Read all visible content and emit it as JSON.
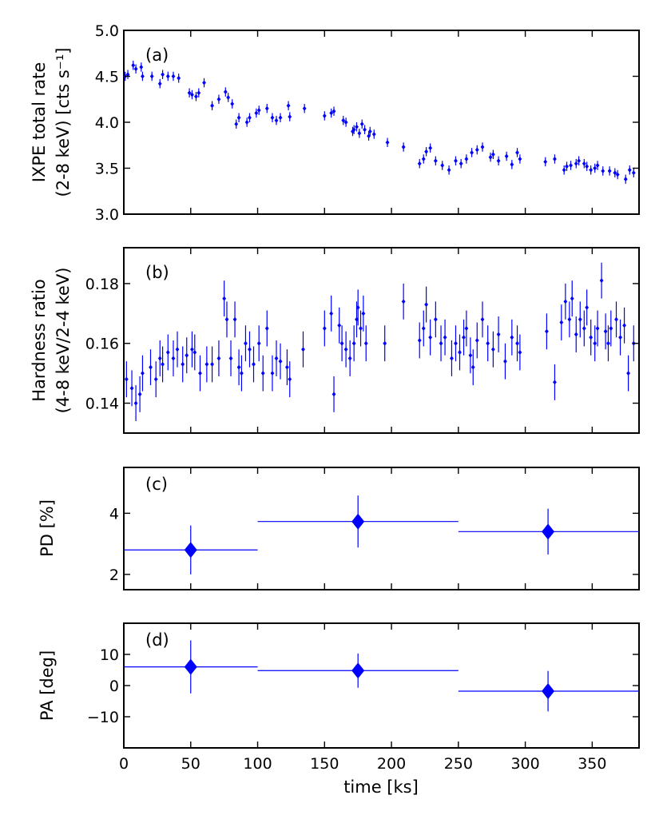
{
  "figure": {
    "xlabel": "time [ks]",
    "x_ticks": [
      0,
      50,
      100,
      150,
      200,
      250,
      300,
      350
    ],
    "xlim": [
      0,
      385
    ],
    "color": "#0000ff"
  },
  "chart_data": [
    {
      "type": "scatter",
      "panel": "(a)",
      "ylabel_line1": "IXPE total rate",
      "ylabel_line2": "(2-8 keV) [cts s⁻¹]",
      "ylim": [
        3.0,
        5.0
      ],
      "y_ticks": [
        3.0,
        3.5,
        4.0,
        4.5,
        5.0
      ],
      "y_tick_labels": [
        "3.0",
        "3.5",
        "4.0",
        "4.5",
        "5.0"
      ],
      "yerr": 0.05,
      "x": [
        1,
        3,
        7,
        9,
        13,
        14,
        21,
        27,
        29,
        33,
        37,
        41,
        49,
        51,
        54,
        56,
        60,
        66,
        71,
        76,
        78,
        81,
        84,
        86,
        92,
        94,
        99,
        101,
        107,
        111,
        114,
        117,
        123,
        124,
        135,
        150,
        155,
        157,
        164,
        166,
        171,
        172,
        174,
        176,
        178,
        180,
        183,
        184,
        187,
        197,
        209,
        221,
        224,
        226,
        229,
        233,
        238,
        243,
        248,
        252,
        256,
        260,
        264,
        268,
        274,
        276,
        280,
        286,
        290,
        294,
        296,
        315,
        322,
        329,
        331,
        334,
        338,
        340,
        344,
        346,
        349,
        352,
        354,
        358,
        363,
        367,
        369,
        375,
        378,
        381
      ],
      "y": [
        4.5,
        4.52,
        4.62,
        4.58,
        4.6,
        4.5,
        4.5,
        4.42,
        4.52,
        4.5,
        4.5,
        4.48,
        4.32,
        4.3,
        4.28,
        4.32,
        4.43,
        4.18,
        4.25,
        4.33,
        4.27,
        4.2,
        3.98,
        4.05,
        4.0,
        4.05,
        4.1,
        4.13,
        4.15,
        4.05,
        4.02,
        4.05,
        4.18,
        4.06,
        4.15,
        4.07,
        4.1,
        4.12,
        4.02,
        4.0,
        3.9,
        3.92,
        3.95,
        3.88,
        3.98,
        3.92,
        3.85,
        3.9,
        3.87,
        3.78,
        3.73,
        3.55,
        3.6,
        3.68,
        3.72,
        3.58,
        3.53,
        3.48,
        3.58,
        3.55,
        3.6,
        3.67,
        3.7,
        3.73,
        3.62,
        3.65,
        3.58,
        3.63,
        3.54,
        3.67,
        3.6,
        3.57,
        3.6,
        3.48,
        3.52,
        3.53,
        3.55,
        3.58,
        3.55,
        3.52,
        3.48,
        3.5,
        3.53,
        3.47,
        3.47,
        3.45,
        3.43,
        3.38,
        3.48,
        3.45
      ]
    },
    {
      "type": "scatter",
      "panel": "(b)",
      "ylabel_line1": "Hardness ratio",
      "ylabel_line2": "(4-8 keV/2-4 keV)",
      "ylim": [
        0.13,
        0.192
      ],
      "y_ticks": [
        0.14,
        0.16,
        0.18
      ],
      "y_tick_labels": [
        "0.14",
        "0.16",
        "0.18"
      ],
      "yerr": 0.006,
      "x": [
        2,
        6,
        9,
        12,
        14,
        20,
        24,
        27,
        29,
        33,
        37,
        40,
        44,
        47,
        51,
        53,
        57,
        62,
        66,
        71,
        75,
        77,
        80,
        83,
        86,
        88,
        91,
        94,
        97,
        101,
        104,
        107,
        111,
        114,
        117,
        122,
        124,
        134,
        150,
        155,
        157,
        161,
        163,
        166,
        169,
        172,
        174,
        175,
        177,
        179,
        181,
        195,
        209,
        221,
        224,
        226,
        229,
        233,
        237,
        240,
        245,
        248,
        251,
        254,
        256,
        259,
        261,
        264,
        268,
        272,
        276,
        280,
        285,
        290,
        294,
        296,
        316,
        322,
        327,
        330,
        333,
        335,
        338,
        341,
        344,
        346,
        349,
        352,
        354,
        357,
        360,
        362,
        364,
        368,
        371,
        374,
        377,
        381
      ],
      "y": [
        0.148,
        0.145,
        0.14,
        0.143,
        0.15,
        0.152,
        0.148,
        0.155,
        0.153,
        0.157,
        0.155,
        0.158,
        0.153,
        0.156,
        0.158,
        0.157,
        0.15,
        0.153,
        0.153,
        0.155,
        0.175,
        0.168,
        0.155,
        0.168,
        0.152,
        0.15,
        0.16,
        0.158,
        0.153,
        0.16,
        0.15,
        0.165,
        0.15,
        0.155,
        0.154,
        0.152,
        0.148,
        0.158,
        0.165,
        0.17,
        0.143,
        0.166,
        0.16,
        0.158,
        0.155,
        0.16,
        0.168,
        0.172,
        0.165,
        0.17,
        0.16,
        0.16,
        0.174,
        0.161,
        0.165,
        0.173,
        0.162,
        0.168,
        0.16,
        0.162,
        0.155,
        0.16,
        0.157,
        0.162,
        0.165,
        0.156,
        0.152,
        0.161,
        0.168,
        0.16,
        0.158,
        0.163,
        0.154,
        0.162,
        0.16,
        0.157,
        0.164,
        0.147,
        0.167,
        0.174,
        0.168,
        0.175,
        0.163,
        0.168,
        0.165,
        0.172,
        0.162,
        0.16,
        0.165,
        0.181,
        0.164,
        0.16,
        0.165,
        0.168,
        0.162,
        0.166,
        0.15,
        0.16
      ]
    },
    {
      "type": "scatter",
      "panel": "(c)",
      "ylabel_line1": "PD [%]",
      "ylim": [
        1.5,
        5.5
      ],
      "y_ticks": [
        2,
        4
      ],
      "y_tick_labels": [
        "2",
        "4"
      ],
      "x": [
        50,
        175,
        317
      ],
      "y": [
        2.8,
        3.73,
        3.4
      ],
      "xerr_low": [
        0,
        100,
        250
      ],
      "xerr_high": [
        100,
        250,
        385
      ],
      "yerr": [
        0.8,
        0.85,
        0.75
      ]
    },
    {
      "type": "scatter",
      "panel": "(d)",
      "ylabel_line1": "PA [deg]",
      "ylim": [
        -20,
        20
      ],
      "y_ticks": [
        -10,
        0,
        10
      ],
      "y_tick_labels": [
        "−10",
        "0",
        "10"
      ],
      "x": [
        50,
        175,
        317
      ],
      "y": [
        6.0,
        4.8,
        -1.8
      ],
      "xerr_low": [
        0,
        100,
        250
      ],
      "xerr_high": [
        100,
        250,
        385
      ],
      "yerr": [
        8.5,
        5.5,
        6.5
      ]
    }
  ]
}
